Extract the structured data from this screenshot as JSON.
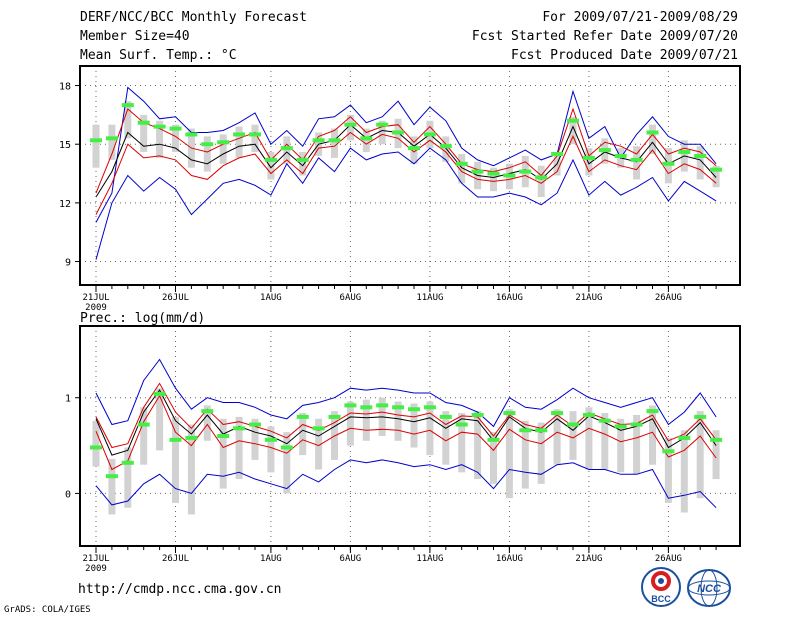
{
  "header": {
    "title": "DERF/NCC/BCC Monthly Forecast",
    "member_size": "Member Size=40",
    "variable_top": "Mean Surf. Temp.: °C",
    "period": "For 2009/07/21-2009/08/29",
    "started": "Fcst Started Refer Date 2009/07/20",
    "produced": "Fcst Produced Date 2009/07/21"
  },
  "footer": {
    "url": "http://cmdp.ncc.cma.gov.cn",
    "grads": "GrADS: COLA/IGES",
    "logo_bcc": "BCC",
    "logo_ncc": "NCC"
  },
  "colors": {
    "frame": "#000000",
    "grid": "#666666",
    "box": "#d2d2d2",
    "median": "#44ee44",
    "mean": "#000000",
    "inner": "#dd0000",
    "outer": "#0000cc"
  },
  "chart_data": [
    {
      "type": "line",
      "name": "temperature",
      "ylabel": "Mean Surf. Temp.: °C",
      "ylim": [
        7.8,
        19
      ],
      "yticks": [
        9,
        12,
        15,
        18
      ],
      "xtick_labels": [
        "21JUL",
        "26JUL",
        "1AUG",
        "6AUG",
        "11AUG",
        "16AUG",
        "21AUG",
        "26AUG"
      ],
      "xtick_days": [
        1,
        6,
        12,
        17,
        22,
        27,
        32,
        37
      ],
      "year_label": "2009",
      "days": 40,
      "grid": true,
      "series": [
        {
          "name": "max",
          "values": [
            11.0,
            12.5,
            17.9,
            17.2,
            16.3,
            16.4,
            15.6,
            15.6,
            15.7,
            16.1,
            16.6,
            15.0,
            15.7,
            14.9,
            16.3,
            16.4,
            17.0,
            16.1,
            16.4,
            17.2,
            16.0,
            16.9,
            16.2,
            14.8,
            14.2,
            13.9,
            14.3,
            14.7,
            14.2,
            14.5,
            17.7,
            15.3,
            15.9,
            14.3,
            15.5,
            16.4,
            15.4,
            15.0,
            15.0,
            14.0
          ]
        },
        {
          "name": "upper",
          "values": [
            12.5,
            14.5,
            16.8,
            16.1,
            15.8,
            15.4,
            14.8,
            14.6,
            15.0,
            15.3,
            15.6,
            14.2,
            15.0,
            14.2,
            15.4,
            15.7,
            16.4,
            15.6,
            15.9,
            16.0,
            15.1,
            15.9,
            15.0,
            14.0,
            13.7,
            13.6,
            13.8,
            14.1,
            13.4,
            14.4,
            16.8,
            14.4,
            15.1,
            14.9,
            14.5,
            15.5,
            14.5,
            14.8,
            14.6,
            13.9
          ]
        },
        {
          "name": "mean",
          "values": [
            12.3,
            13.6,
            15.6,
            14.9,
            15.0,
            14.8,
            14.2,
            14.0,
            14.5,
            14.9,
            15.0,
            13.8,
            14.6,
            13.9,
            15.0,
            15.2,
            16.0,
            15.3,
            15.7,
            15.6,
            14.9,
            15.5,
            14.8,
            13.8,
            13.4,
            13.3,
            13.5,
            13.7,
            13.2,
            14.0,
            15.9,
            14.0,
            14.6,
            14.3,
            14.1,
            15.1,
            14.0,
            14.4,
            14.2,
            13.3
          ]
        },
        {
          "name": "lower",
          "values": [
            11.4,
            13.0,
            15.0,
            14.3,
            14.4,
            14.2,
            13.4,
            13.2,
            13.9,
            14.3,
            14.5,
            13.5,
            14.2,
            13.5,
            14.8,
            14.9,
            15.6,
            15.0,
            15.5,
            15.3,
            14.6,
            15.2,
            14.6,
            13.6,
            13.2,
            13.1,
            13.2,
            13.4,
            13.0,
            13.6,
            15.4,
            13.6,
            14.2,
            13.9,
            13.7,
            14.7,
            13.5,
            14.0,
            13.7,
            13.0
          ]
        },
        {
          "name": "min",
          "values": [
            9.1,
            12.0,
            13.4,
            12.6,
            13.3,
            12.7,
            11.4,
            12.2,
            13.0,
            13.2,
            12.9,
            12.4,
            14.0,
            13.0,
            14.3,
            13.6,
            14.8,
            14.2,
            14.5,
            14.6,
            14.0,
            14.8,
            14.2,
            13.0,
            12.3,
            12.3,
            12.5,
            12.3,
            11.9,
            12.5,
            14.2,
            12.4,
            13.1,
            12.4,
            12.8,
            13.3,
            12.1,
            13.1,
            12.6,
            12.1
          ]
        },
        {
          "name": "median",
          "values": [
            15.2,
            15.3,
            17.0,
            16.1,
            15.9,
            15.8,
            15.5,
            15.0,
            15.1,
            15.5,
            15.5,
            14.2,
            14.8,
            14.2,
            15.2,
            15.2,
            16.0,
            15.3,
            16.0,
            15.6,
            14.8,
            15.5,
            14.9,
            14.0,
            13.6,
            13.5,
            13.4,
            13.6,
            13.3,
            14.5,
            16.2,
            14.3,
            14.7,
            14.4,
            14.2,
            15.6,
            14.0,
            14.6,
            14.4,
            13.7
          ]
        },
        {
          "name": "box_top",
          "values": [
            16.0,
            16.0,
            17.2,
            16.5,
            16.2,
            16.0,
            15.8,
            15.4,
            15.5,
            15.9,
            16.0,
            14.6,
            15.4,
            14.6,
            15.6,
            15.8,
            16.5,
            15.8,
            16.2,
            16.3,
            15.4,
            16.2,
            15.4,
            14.5,
            14.1,
            13.8,
            14.0,
            14.4,
            13.9,
            14.6,
            16.4,
            14.8,
            15.3,
            14.8,
            14.9,
            16.0,
            14.8,
            15.2,
            14.9,
            13.9
          ]
        },
        {
          "name": "box_bottom",
          "values": [
            13.8,
            14.2,
            15.3,
            14.6,
            14.3,
            14.6,
            13.8,
            13.6,
            14.0,
            14.3,
            14.6,
            13.2,
            14.0,
            13.4,
            14.4,
            14.3,
            15.2,
            14.6,
            15.0,
            14.8,
            14.0,
            14.8,
            14.1,
            13.0,
            12.7,
            12.6,
            12.7,
            12.8,
            12.3,
            13.4,
            15.0,
            13.4,
            14.0,
            13.8,
            13.2,
            14.5,
            13.0,
            13.6,
            13.2,
            12.8
          ]
        }
      ]
    },
    {
      "type": "line",
      "name": "precipitation",
      "ylabel": "Prec.: log(mm/d)",
      "ylim": [
        -0.55,
        1.75
      ],
      "yticks": [
        0,
        1
      ],
      "xtick_labels": [
        "21JUL",
        "26JUL",
        "1AUG",
        "6AUG",
        "11AUG",
        "16AUG",
        "21AUG",
        "26AUG"
      ],
      "xtick_days": [
        1,
        6,
        12,
        17,
        22,
        27,
        32,
        37
      ],
      "year_label": "2009",
      "days": 40,
      "grid": true,
      "series": [
        {
          "name": "max",
          "values": [
            1.05,
            0.72,
            0.76,
            1.18,
            1.4,
            1.1,
            0.88,
            1.0,
            0.95,
            0.95,
            0.9,
            0.82,
            0.78,
            0.92,
            0.95,
            1.0,
            1.1,
            1.08,
            1.1,
            1.08,
            1.05,
            1.05,
            0.95,
            0.92,
            0.85,
            0.7,
            1.0,
            0.9,
            0.88,
            0.98,
            1.1,
            1.0,
            0.95,
            0.9,
            0.95,
            1.0,
            0.72,
            0.85,
            1.05,
            0.8
          ]
        },
        {
          "name": "upper",
          "values": [
            0.8,
            0.48,
            0.52,
            0.9,
            1.15,
            0.85,
            0.68,
            0.88,
            0.72,
            0.75,
            0.7,
            0.65,
            0.58,
            0.72,
            0.66,
            0.74,
            0.84,
            0.83,
            0.85,
            0.82,
            0.8,
            0.84,
            0.72,
            0.81,
            0.8,
            0.6,
            0.82,
            0.72,
            0.68,
            0.82,
            0.7,
            0.84,
            0.78,
            0.72,
            0.73,
            0.82,
            0.55,
            0.62,
            0.78,
            0.56
          ]
        },
        {
          "name": "mean",
          "values": [
            0.78,
            0.4,
            0.45,
            0.85,
            1.08,
            0.76,
            0.62,
            0.82,
            0.62,
            0.7,
            0.64,
            0.6,
            0.52,
            0.66,
            0.6,
            0.7,
            0.8,
            0.79,
            0.8,
            0.78,
            0.75,
            0.79,
            0.68,
            0.78,
            0.76,
            0.55,
            0.8,
            0.68,
            0.64,
            0.78,
            0.66,
            0.81,
            0.74,
            0.66,
            0.7,
            0.78,
            0.48,
            0.58,
            0.74,
            0.5
          ]
        },
        {
          "name": "lower",
          "values": [
            0.65,
            0.25,
            0.34,
            0.75,
            1.02,
            0.64,
            0.5,
            0.72,
            0.48,
            0.55,
            0.52,
            0.48,
            0.42,
            0.56,
            0.5,
            0.6,
            0.68,
            0.66,
            0.67,
            0.66,
            0.62,
            0.66,
            0.55,
            0.64,
            0.62,
            0.45,
            0.67,
            0.56,
            0.52,
            0.64,
            0.58,
            0.68,
            0.62,
            0.54,
            0.58,
            0.64,
            0.38,
            0.45,
            0.6,
            0.37
          ]
        },
        {
          "name": "min",
          "values": [
            0.08,
            -0.12,
            -0.08,
            0.1,
            0.2,
            0.05,
            0.0,
            0.2,
            0.18,
            0.22,
            0.15,
            0.1,
            0.05,
            0.2,
            0.12,
            0.25,
            0.35,
            0.32,
            0.35,
            0.32,
            0.28,
            0.3,
            0.25,
            0.3,
            0.22,
            0.05,
            0.25,
            0.22,
            0.2,
            0.3,
            0.32,
            0.25,
            0.25,
            0.2,
            0.2,
            0.25,
            -0.05,
            -0.02,
            0.02,
            -0.15
          ]
        },
        {
          "name": "median",
          "values": [
            0.48,
            0.18,
            0.32,
            0.72,
            1.04,
            0.56,
            0.58,
            0.86,
            0.6,
            0.68,
            0.72,
            0.56,
            0.48,
            0.8,
            0.68,
            0.8,
            0.92,
            0.9,
            0.92,
            0.9,
            0.88,
            0.9,
            0.8,
            0.72,
            0.82,
            0.56,
            0.84,
            0.66,
            0.66,
            0.84,
            0.72,
            0.82,
            0.76,
            0.7,
            0.72,
            0.86,
            0.44,
            0.58,
            0.8,
            0.56
          ]
        },
        {
          "name": "box_top",
          "values": [
            0.76,
            0.36,
            0.48,
            0.9,
            1.1,
            0.8,
            0.72,
            0.92,
            0.78,
            0.8,
            0.78,
            0.7,
            0.64,
            0.84,
            0.78,
            0.86,
            0.96,
            0.98,
            1.0,
            0.96,
            0.94,
            0.96,
            0.86,
            0.84,
            0.86,
            0.64,
            0.88,
            0.76,
            0.74,
            0.88,
            0.86,
            0.9,
            0.84,
            0.78,
            0.82,
            0.92,
            0.58,
            0.66,
            0.86,
            0.66
          ]
        },
        {
          "name": "box_bottom",
          "values": [
            0.28,
            -0.22,
            -0.15,
            0.3,
            0.45,
            -0.1,
            -0.22,
            0.55,
            0.05,
            0.15,
            0.35,
            0.22,
            0.0,
            0.4,
            0.25,
            0.35,
            0.5,
            0.55,
            0.6,
            0.55,
            0.48,
            0.4,
            0.3,
            0.22,
            0.15,
            0.1,
            -0.05,
            0.05,
            0.1,
            0.3,
            0.35,
            0.25,
            0.25,
            0.22,
            0.2,
            0.3,
            -0.1,
            -0.2,
            -0.05,
            0.15
          ]
        }
      ]
    }
  ]
}
